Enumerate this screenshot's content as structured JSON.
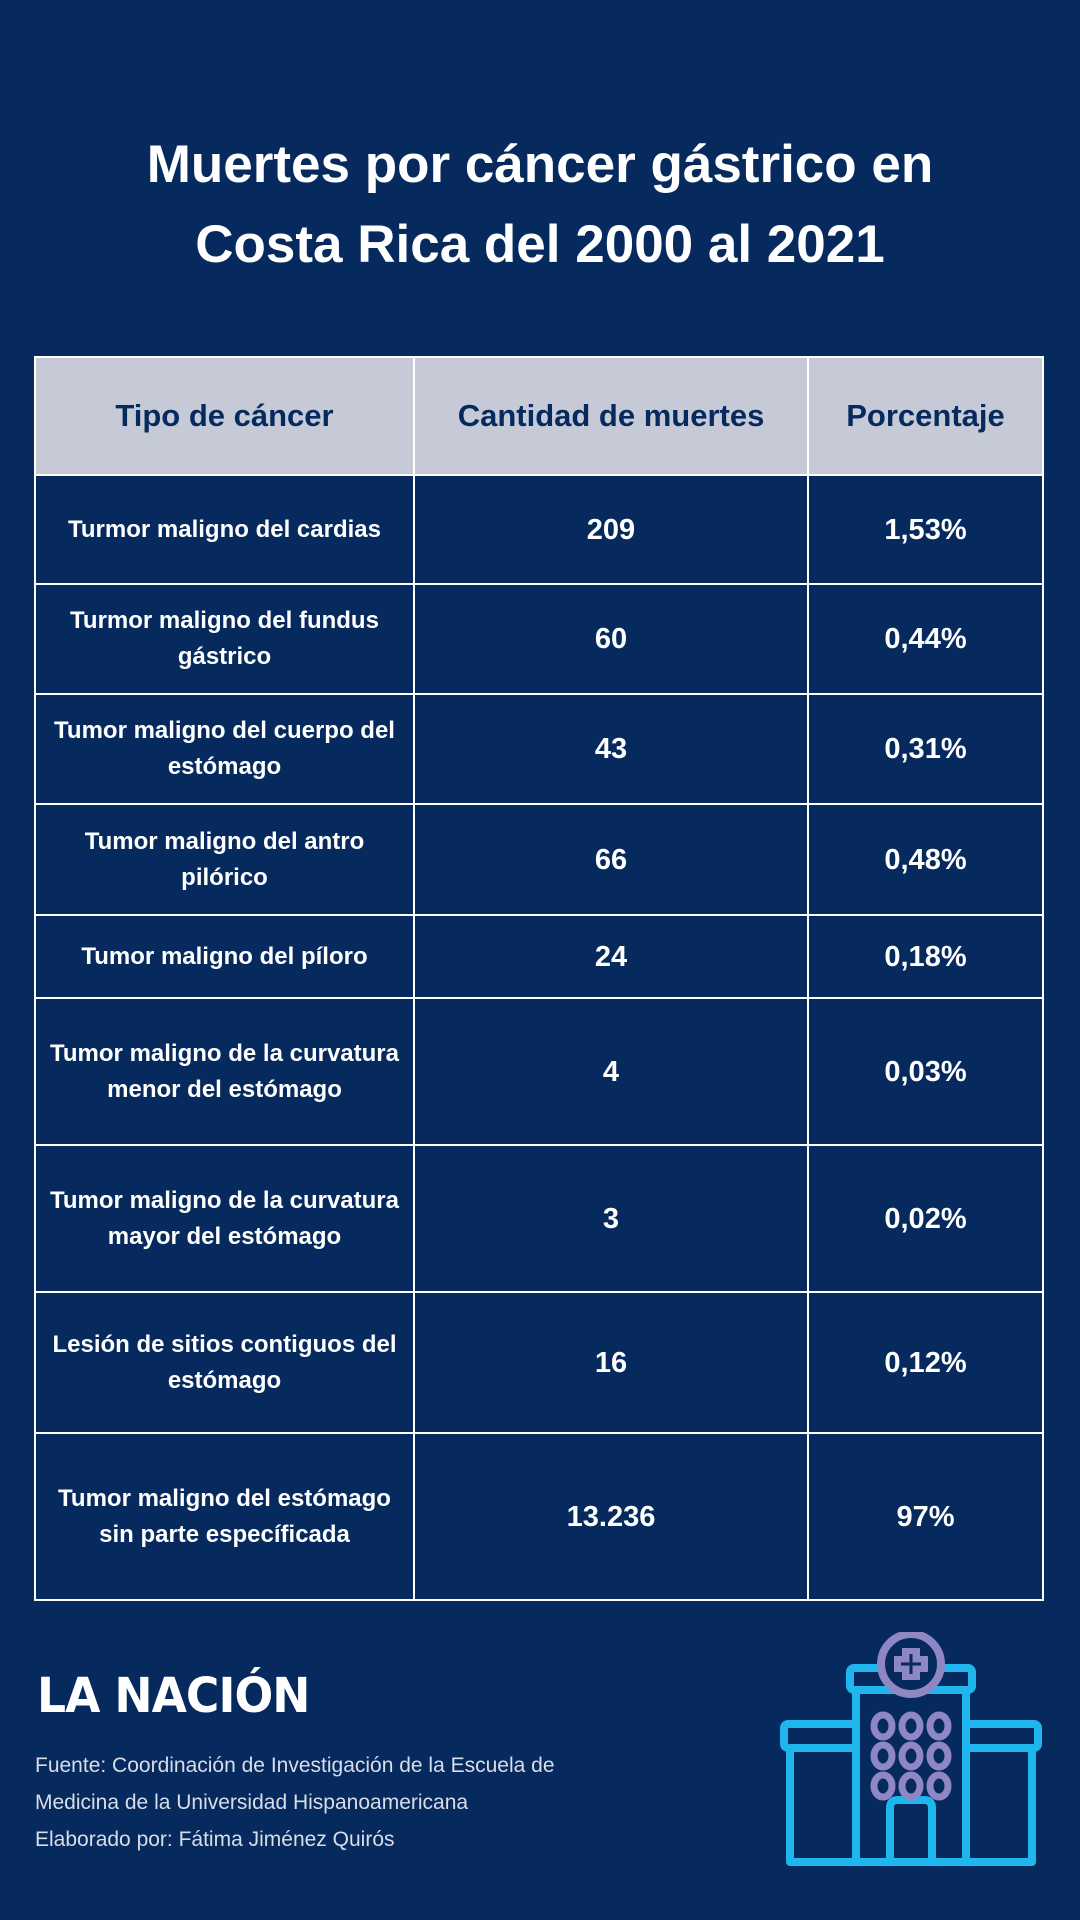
{
  "title": {
    "line1": "Muertes por cáncer gástrico en",
    "line2": "Costa Rica del 2000 al 2021"
  },
  "table": {
    "headers": [
      "Tipo de cáncer",
      "Cantidad de muertes",
      "Porcentaje"
    ],
    "rows": [
      {
        "tipo": "Turmor maligno del cardias",
        "cantidad": "209",
        "porcentaje": "1,53%"
      },
      {
        "tipo": "Turmor maligno del fundus gástrico",
        "cantidad": "60",
        "porcentaje": "0,44%"
      },
      {
        "tipo": "Tumor maligno del cuerpo del estómago",
        "cantidad": "43",
        "porcentaje": "0,31%"
      },
      {
        "tipo": "Tumor maligno del antro pilórico",
        "cantidad": "66",
        "porcentaje": "0,48%"
      },
      {
        "tipo": "Tumor maligno del píloro",
        "cantidad": "24",
        "porcentaje": "0,18%"
      },
      {
        "tipo": "Tumor maligno de la curvatura menor del estómago",
        "cantidad": "4",
        "porcentaje": "0,03%"
      },
      {
        "tipo": "Tumor maligno de la curvatura mayor del estómago",
        "cantidad": "3",
        "porcentaje": "0,02%"
      },
      {
        "tipo": "Lesión de sitios contiguos del estómago",
        "cantidad": "16",
        "porcentaje": "0,12%"
      },
      {
        "tipo": "Tumor maligno del estómago sin parte específicada",
        "cantidad": "13.236",
        "porcentaje": "97%"
      }
    ]
  },
  "logo": "LA NACIÓN",
  "source": {
    "line1": "Fuente: Coordinación de Investigación de la Escuela de",
    "line2": "Medicina de la Universidad Hispanoamericana",
    "line3": "Elaborado por: Fátima Jiménez Quirós"
  },
  "icons": {
    "hospital": "hospital-icon"
  },
  "colors": {
    "background": "#062a5e",
    "header": "#c5cad6",
    "icon_blue": "#1fb6ee",
    "icon_purple": "#8f86c4"
  }
}
